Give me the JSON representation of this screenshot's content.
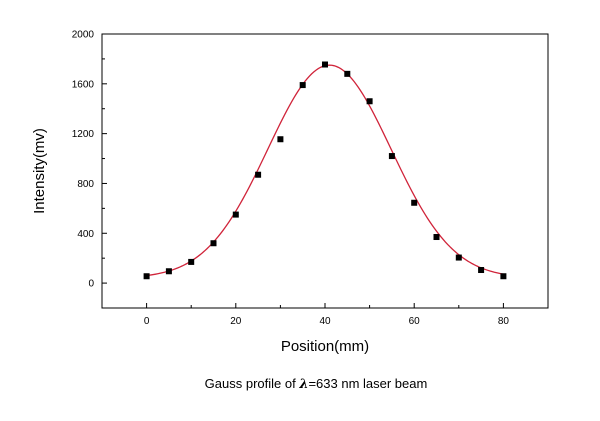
{
  "chart_data": {
    "type": "scatter",
    "caption": {
      "prefix": "Gauss profile of ",
      "symbol": "λ",
      "suffix": "=633 nm laser beam"
    },
    "xlabel": "Position(mm)",
    "ylabel": "Intensity(mv)",
    "xlim": [
      -10,
      90
    ],
    "ylim": [
      -200,
      2000
    ],
    "xticks": [
      "0",
      "20",
      "40",
      "60",
      "80"
    ],
    "yticks": [
      "0",
      "400",
      "800",
      "1200",
      "1600",
      "2000"
    ],
    "grid": false,
    "legend": "none",
    "series": [
      {
        "type": "scatter",
        "marker": "square",
        "color": "#000000",
        "x": [
          0,
          5,
          10,
          15,
          20,
          25,
          30,
          35,
          40,
          45,
          50,
          55,
          60,
          65,
          70,
          75,
          80
        ],
        "y": [
          55,
          95,
          170,
          320,
          550,
          870,
          1155,
          1590,
          1755,
          1680,
          1460,
          1020,
          645,
          370,
          205,
          105,
          55
        ]
      },
      {
        "type": "line",
        "fit": "gaussian",
        "color": "#d0243a",
        "baseline": 40,
        "amplitude": 1710,
        "center": 41,
        "sigma": 13.8
      }
    ]
  }
}
